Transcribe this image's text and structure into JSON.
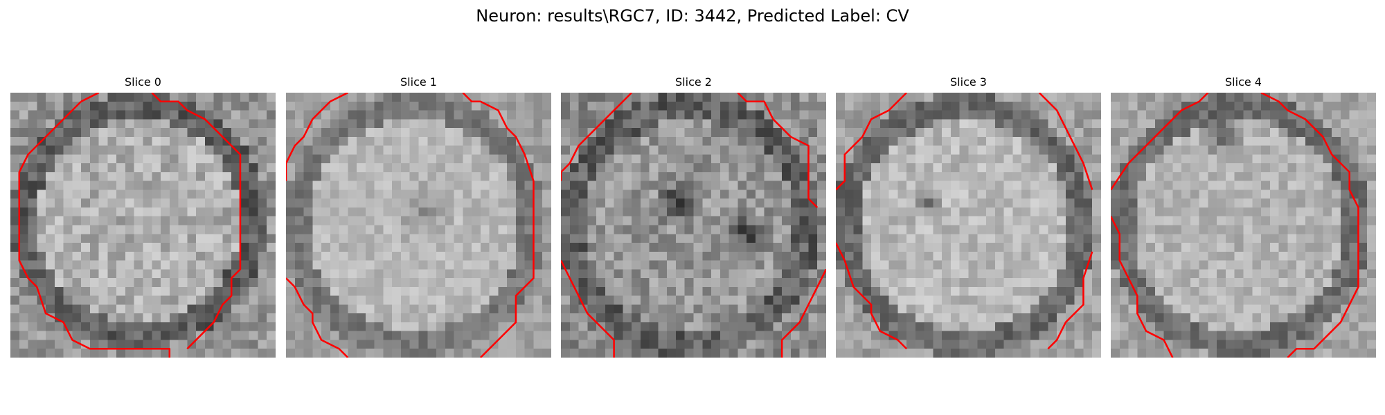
{
  "figure": {
    "title": "Neuron: results\\RGC7, ID: 3442, Predicted Label: CV"
  },
  "slices": [
    {
      "title": "Slice 0"
    },
    {
      "title": "Slice 1"
    },
    {
      "title": "Slice 2"
    },
    {
      "title": "Slice 3"
    },
    {
      "title": "Slice 4"
    }
  ],
  "colors": {
    "contour": "#ff0000",
    "background": "#ffffff",
    "colormap": "grayscale"
  }
}
